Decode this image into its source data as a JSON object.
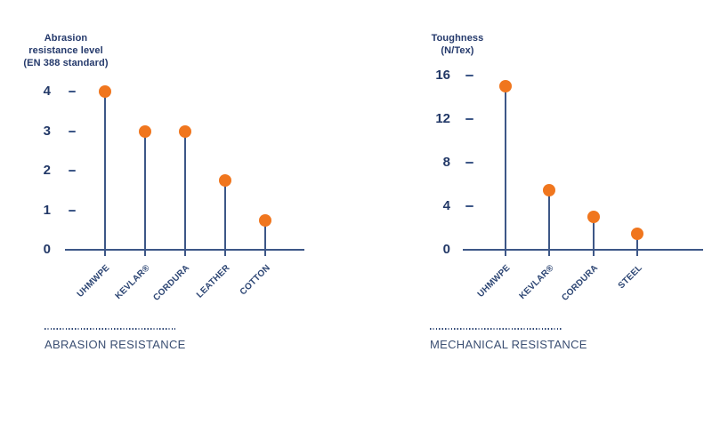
{
  "chart_data": [
    {
      "type": "lollipop",
      "title": "Abrasion resistance level (EN 388 standard)",
      "title_lines": [
        "Abrasion",
        "resistance level",
        "(EN 388 standard)"
      ],
      "ylabel": "Abrasion resistance level (EN 388 standard)",
      "xlabel": "",
      "ylim": [
        0,
        4
      ],
      "y_ticks": [
        0,
        1,
        2,
        3,
        4
      ],
      "categories": [
        "UHMWPE",
        "KEVLAR®",
        "CORDURA",
        "LEATHER",
        "COTTON"
      ],
      "values": [
        4,
        3,
        3,
        1.75,
        0.75
      ],
      "footer_label": "ABRASION RESISTANCE",
      "grid": false,
      "legend": false
    },
    {
      "type": "lollipop",
      "title": "Toughness (N/Tex)",
      "title_lines": [
        "Toughness",
        "(N/Tex)"
      ],
      "ylabel": "Toughness (N/Tex)",
      "xlabel": "",
      "ylim": [
        0,
        16
      ],
      "y_ticks": [
        0,
        4,
        8,
        12,
        16
      ],
      "categories": [
        "UHMWPE",
        "KEVLAR®",
        "CORDURA",
        "STEEL"
      ],
      "values": [
        15,
        5.5,
        3,
        1.5
      ],
      "footer_label": "MECHANICAL RESISTANCE",
      "grid": false,
      "legend": false
    }
  ],
  "colors": {
    "navy_text": "#24396b",
    "stem_axis": "#3d5787",
    "dot_orange": "#f0761e",
    "footer_text": "#3a4e72",
    "background": "#ffffff"
  }
}
